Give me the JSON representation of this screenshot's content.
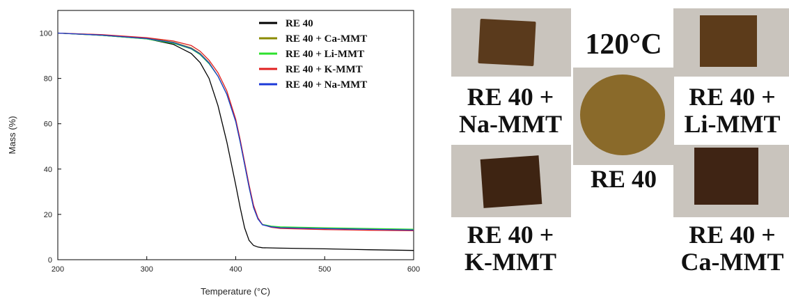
{
  "chart_data": {
    "type": "line",
    "xlabel": "Temperature (°C)",
    "ylabel": "Mass (%)",
    "xlim": [
      200,
      600
    ],
    "ylim": [
      0,
      110
    ],
    "xticks": [
      "200",
      "300",
      "400",
      "500",
      "600"
    ],
    "yticks": [
      "0",
      "20",
      "40",
      "60",
      "80",
      "100"
    ],
    "grid": false,
    "legend_position": "top-right",
    "series": [
      {
        "name": "RE 40",
        "color": "#000000",
        "x": [
          200,
          250,
          300,
          330,
          350,
          360,
          370,
          380,
          390,
          400,
          405,
          410,
          415,
          420,
          425,
          430,
          450,
          500,
          550,
          600
        ],
        "y": [
          100,
          99,
          97.5,
          95,
          91,
          87,
          80,
          68,
          52,
          33,
          23,
          14,
          8.5,
          6.3,
          5.6,
          5.3,
          5.1,
          4.8,
          4.4,
          4.1
        ]
      },
      {
        "name": "RE 40 + Ca-MMT",
        "color": "#8b8b00",
        "x": [
          200,
          250,
          300,
          330,
          350,
          360,
          370,
          380,
          390,
          400,
          405,
          410,
          415,
          420,
          425,
          430,
          440,
          450,
          500,
          550,
          600
        ],
        "y": [
          100,
          99.2,
          97.8,
          96,
          93.5,
          91,
          87,
          81,
          73,
          61,
          52,
          42,
          32,
          23,
          18,
          15.5,
          14.6,
          14.3,
          13.9,
          13.6,
          13.3
        ]
      },
      {
        "name": "RE 40 + Li-MMT",
        "color": "#2ee02e",
        "x": [
          200,
          250,
          300,
          330,
          350,
          360,
          370,
          380,
          390,
          400,
          405,
          410,
          415,
          420,
          425,
          430,
          440,
          450,
          500,
          550,
          600
        ],
        "y": [
          100,
          99,
          97.4,
          95.5,
          93,
          90.5,
          86.5,
          81,
          73,
          61,
          52,
          42,
          32,
          23,
          18,
          15.6,
          14.8,
          14.5,
          14.1,
          13.8,
          13.5
        ]
      },
      {
        "name": "RE 40 + K-MMT",
        "color": "#e02020",
        "x": [
          200,
          250,
          300,
          330,
          350,
          360,
          370,
          380,
          390,
          400,
          405,
          410,
          415,
          420,
          425,
          430,
          440,
          450,
          500,
          550,
          600
        ],
        "y": [
          100,
          99.3,
          98,
          96.5,
          94.5,
          92,
          88,
          82.5,
          74.5,
          62,
          53,
          43,
          33,
          24,
          18.5,
          15.5,
          14.3,
          13.8,
          13.3,
          13,
          12.8
        ]
      },
      {
        "name": "RE 40 + Na-MMT",
        "color": "#1c3ad8",
        "x": [
          200,
          250,
          300,
          330,
          350,
          360,
          370,
          380,
          390,
          400,
          405,
          410,
          415,
          420,
          425,
          430,
          440,
          450,
          500,
          550,
          600
        ],
        "y": [
          100,
          99.1,
          97.6,
          95.8,
          93.2,
          90.8,
          86.8,
          81,
          73,
          61,
          52,
          42,
          32,
          23,
          18,
          15.4,
          14.5,
          14.1,
          13.7,
          13.4,
          13.1
        ]
      }
    ]
  },
  "photos": {
    "temperature": "120°C",
    "samples": [
      {
        "line1": "RE 40 +",
        "line2": "Na-MMT"
      },
      {
        "line1": "RE 40 +",
        "line2": "Li-MMT"
      },
      {
        "line1": "RE 40",
        "line2": ""
      },
      {
        "line1": "RE 40 +",
        "line2": "K-MMT"
      },
      {
        "line1": "RE 40 +",
        "line2": "Ca-MMT"
      }
    ],
    "colors": {
      "background": "#c9c4bd",
      "square_light": "#5a3a1c",
      "square_dark": "#3e2412",
      "disc": "#8a6a2a"
    }
  }
}
